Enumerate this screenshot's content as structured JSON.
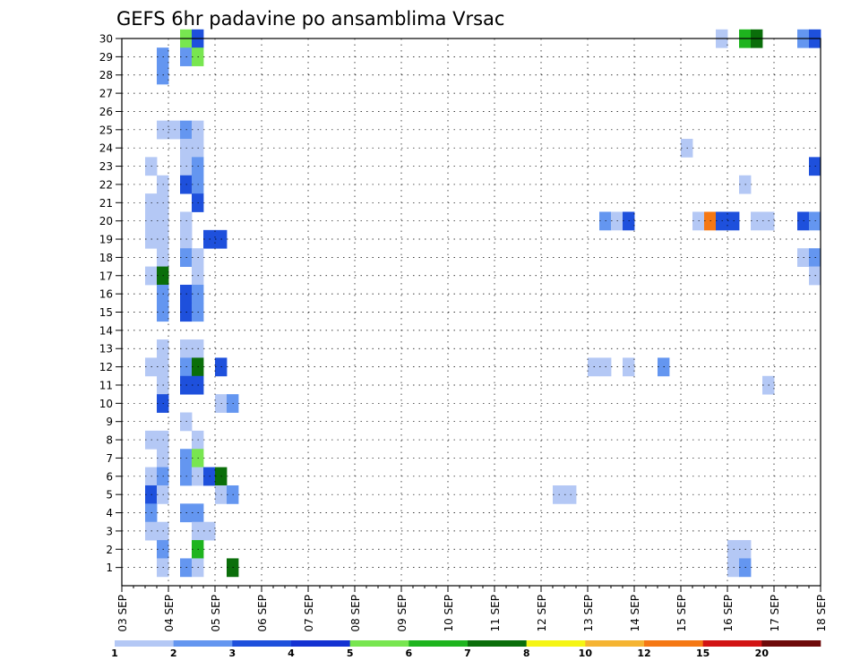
{
  "chart_data": {
    "type": "heatmap",
    "title": "GEFS 6hr padavine po ansamblima Vrsac",
    "xlabel": "",
    "ylabel": "",
    "x_range_days": [
      0,
      15
    ],
    "x_step_hours": 6,
    "y_range": [
      0,
      30
    ],
    "y_ticks": [
      1,
      2,
      3,
      4,
      5,
      6,
      7,
      8,
      9,
      10,
      11,
      12,
      13,
      14,
      15,
      16,
      17,
      18,
      19,
      20,
      21,
      22,
      23,
      24,
      25,
      26,
      27,
      28,
      29,
      30
    ],
    "x_tick_labels": [
      "03 SEP",
      "04 SEP",
      "05 SEP",
      "06 SEP",
      "07 SEP",
      "08 SEP",
      "09 SEP",
      "10 SEP",
      "11 SEP",
      "12 SEP",
      "13 SEP",
      "14 SEP",
      "15 SEP",
      "16 SEP",
      "17 SEP",
      "18 SEP"
    ],
    "grid": true,
    "legend": {
      "placement": "bottom",
      "labels": [
        "1",
        "2",
        "3",
        "4",
        "5",
        "6",
        "7",
        "8",
        "10",
        "12",
        "15",
        "20"
      ],
      "colors": [
        "#b4c8f5",
        "#6496f0",
        "#1e50dc",
        "#1432d2",
        "#78e650",
        "#1eb41e",
        "#0a6e0a",
        "#f5f514",
        "#f5b432",
        "#f57814",
        "#d21414",
        "#6e0a0a"
      ]
    },
    "colors": {
      "c1": "#b4c8f5",
      "c2": "#6496f0",
      "c3": "#1e50dc",
      "c5": "#78e650",
      "c6": "#1eb41e",
      "c7": "#0a6e0a",
      "c12": "#f57814"
    },
    "cells": [
      {
        "m": 30,
        "s": 5,
        "c": "c5"
      },
      {
        "m": 30,
        "s": 6,
        "c": "c3"
      },
      {
        "m": 30,
        "s": 51,
        "c": "c1"
      },
      {
        "m": 30,
        "s": 53,
        "c": "c6"
      },
      {
        "m": 30,
        "s": 54,
        "c": "c7"
      },
      {
        "m": 30,
        "s": 58,
        "c": "c2"
      },
      {
        "m": 30,
        "s": 59,
        "c": "c3"
      },
      {
        "m": 29,
        "s": 3,
        "c": "c2"
      },
      {
        "m": 29,
        "s": 5,
        "c": "c2"
      },
      {
        "m": 29,
        "s": 6,
        "c": "c5"
      },
      {
        "m": 28,
        "s": 3,
        "c": "c2"
      },
      {
        "m": 25,
        "s": 3,
        "c": "c1"
      },
      {
        "m": 25,
        "s": 4,
        "c": "c1"
      },
      {
        "m": 25,
        "s": 5,
        "c": "c2"
      },
      {
        "m": 25,
        "s": 6,
        "c": "c1"
      },
      {
        "m": 24,
        "s": 5,
        "c": "c1"
      },
      {
        "m": 24,
        "s": 6,
        "c": "c1"
      },
      {
        "m": 24,
        "s": 48,
        "c": "c1"
      },
      {
        "m": 23,
        "s": 2,
        "c": "c1"
      },
      {
        "m": 23,
        "s": 5,
        "c": "c1"
      },
      {
        "m": 23,
        "s": 6,
        "c": "c2"
      },
      {
        "m": 23,
        "s": 59,
        "c": "c3"
      },
      {
        "m": 22,
        "s": 3,
        "c": "c1"
      },
      {
        "m": 22,
        "s": 5,
        "c": "c3"
      },
      {
        "m": 22,
        "s": 6,
        "c": "c2"
      },
      {
        "m": 22,
        "s": 53,
        "c": "c1"
      },
      {
        "m": 21,
        "s": 2,
        "c": "c1"
      },
      {
        "m": 21,
        "s": 3,
        "c": "c1"
      },
      {
        "m": 21,
        "s": 6,
        "c": "c3"
      },
      {
        "m": 20,
        "s": 2,
        "c": "c1"
      },
      {
        "m": 20,
        "s": 3,
        "c": "c1"
      },
      {
        "m": 20,
        "s": 5,
        "c": "c1"
      },
      {
        "m": 20,
        "s": 41,
        "c": "c2"
      },
      {
        "m": 20,
        "s": 42,
        "c": "c1"
      },
      {
        "m": 20,
        "s": 43,
        "c": "c3"
      },
      {
        "m": 20,
        "s": 49,
        "c": "c1"
      },
      {
        "m": 20,
        "s": 50,
        "c": "c12"
      },
      {
        "m": 20,
        "s": 51,
        "c": "c3"
      },
      {
        "m": 20,
        "s": 52,
        "c": "c3"
      },
      {
        "m": 20,
        "s": 54,
        "c": "c1"
      },
      {
        "m": 20,
        "s": 55,
        "c": "c1"
      },
      {
        "m": 20,
        "s": 58,
        "c": "c3"
      },
      {
        "m": 20,
        "s": 59,
        "c": "c2"
      },
      {
        "m": 19,
        "s": 2,
        "c": "c1"
      },
      {
        "m": 19,
        "s": 3,
        "c": "c1"
      },
      {
        "m": 19,
        "s": 5,
        "c": "c1"
      },
      {
        "m": 19,
        "s": 7,
        "c": "c3"
      },
      {
        "m": 19,
        "s": 8,
        "c": "c3"
      },
      {
        "m": 18,
        "s": 3,
        "c": "c1"
      },
      {
        "m": 18,
        "s": 5,
        "c": "c2"
      },
      {
        "m": 18,
        "s": 6,
        "c": "c1"
      },
      {
        "m": 18,
        "s": 58,
        "c": "c1"
      },
      {
        "m": 18,
        "s": 59,
        "c": "c2"
      },
      {
        "m": 17,
        "s": 2,
        "c": "c1"
      },
      {
        "m": 17,
        "s": 3,
        "c": "c7"
      },
      {
        "m": 17,
        "s": 6,
        "c": "c1"
      },
      {
        "m": 17,
        "s": 59,
        "c": "c1"
      },
      {
        "m": 16,
        "s": 3,
        "c": "c2"
      },
      {
        "m": 16,
        "s": 5,
        "c": "c3"
      },
      {
        "m": 16,
        "s": 6,
        "c": "c2"
      },
      {
        "m": 15,
        "s": 3,
        "c": "c2"
      },
      {
        "m": 15,
        "s": 5,
        "c": "c3"
      },
      {
        "m": 15,
        "s": 6,
        "c": "c2"
      },
      {
        "m": 13,
        "s": 3,
        "c": "c1"
      },
      {
        "m": 13,
        "s": 5,
        "c": "c1"
      },
      {
        "m": 13,
        "s": 6,
        "c": "c1"
      },
      {
        "m": 12,
        "s": 2,
        "c": "c1"
      },
      {
        "m": 12,
        "s": 3,
        "c": "c1"
      },
      {
        "m": 12,
        "s": 5,
        "c": "c2"
      },
      {
        "m": 12,
        "s": 6,
        "c": "c7"
      },
      {
        "m": 12,
        "s": 8,
        "c": "c3"
      },
      {
        "m": 12,
        "s": 40,
        "c": "c1"
      },
      {
        "m": 12,
        "s": 41,
        "c": "c1"
      },
      {
        "m": 12,
        "s": 43,
        "c": "c1"
      },
      {
        "m": 12,
        "s": 46,
        "c": "c2"
      },
      {
        "m": 11,
        "s": 3,
        "c": "c1"
      },
      {
        "m": 11,
        "s": 5,
        "c": "c3"
      },
      {
        "m": 11,
        "s": 6,
        "c": "c3"
      },
      {
        "m": 11,
        "s": 55,
        "c": "c1"
      },
      {
        "m": 10,
        "s": 3,
        "c": "c3"
      },
      {
        "m": 10,
        "s": 8,
        "c": "c1"
      },
      {
        "m": 10,
        "s": 9,
        "c": "c2"
      },
      {
        "m": 9,
        "s": 5,
        "c": "c1"
      },
      {
        "m": 8,
        "s": 2,
        "c": "c1"
      },
      {
        "m": 8,
        "s": 3,
        "c": "c1"
      },
      {
        "m": 8,
        "s": 6,
        "c": "c1"
      },
      {
        "m": 7,
        "s": 3,
        "c": "c1"
      },
      {
        "m": 7,
        "s": 5,
        "c": "c2"
      },
      {
        "m": 7,
        "s": 6,
        "c": "c5"
      },
      {
        "m": 6,
        "s": 2,
        "c": "c1"
      },
      {
        "m": 6,
        "s": 3,
        "c": "c2"
      },
      {
        "m": 6,
        "s": 5,
        "c": "c2"
      },
      {
        "m": 6,
        "s": 6,
        "c": "c1"
      },
      {
        "m": 6,
        "s": 7,
        "c": "c3"
      },
      {
        "m": 6,
        "s": 8,
        "c": "c7"
      },
      {
        "m": 5,
        "s": 2,
        "c": "c3"
      },
      {
        "m": 5,
        "s": 3,
        "c": "c1"
      },
      {
        "m": 5,
        "s": 8,
        "c": "c1"
      },
      {
        "m": 5,
        "s": 9,
        "c": "c2"
      },
      {
        "m": 5,
        "s": 37,
        "c": "c1"
      },
      {
        "m": 5,
        "s": 38,
        "c": "c1"
      },
      {
        "m": 4,
        "s": 2,
        "c": "c2"
      },
      {
        "m": 4,
        "s": 5,
        "c": "c2"
      },
      {
        "m": 4,
        "s": 6,
        "c": "c2"
      },
      {
        "m": 3,
        "s": 2,
        "c": "c1"
      },
      {
        "m": 3,
        "s": 3,
        "c": "c1"
      },
      {
        "m": 3,
        "s": 6,
        "c": "c1"
      },
      {
        "m": 3,
        "s": 7,
        "c": "c1"
      },
      {
        "m": 2,
        "s": 3,
        "c": "c2"
      },
      {
        "m": 2,
        "s": 6,
        "c": "c6"
      },
      {
        "m": 2,
        "s": 52,
        "c": "c1"
      },
      {
        "m": 2,
        "s": 53,
        "c": "c1"
      },
      {
        "m": 1,
        "s": 3,
        "c": "c1"
      },
      {
        "m": 1,
        "s": 5,
        "c": "c2"
      },
      {
        "m": 1,
        "s": 6,
        "c": "c1"
      },
      {
        "m": 1,
        "s": 9,
        "c": "c7"
      },
      {
        "m": 1,
        "s": 52,
        "c": "c1"
      },
      {
        "m": 1,
        "s": 53,
        "c": "c2"
      }
    ]
  }
}
